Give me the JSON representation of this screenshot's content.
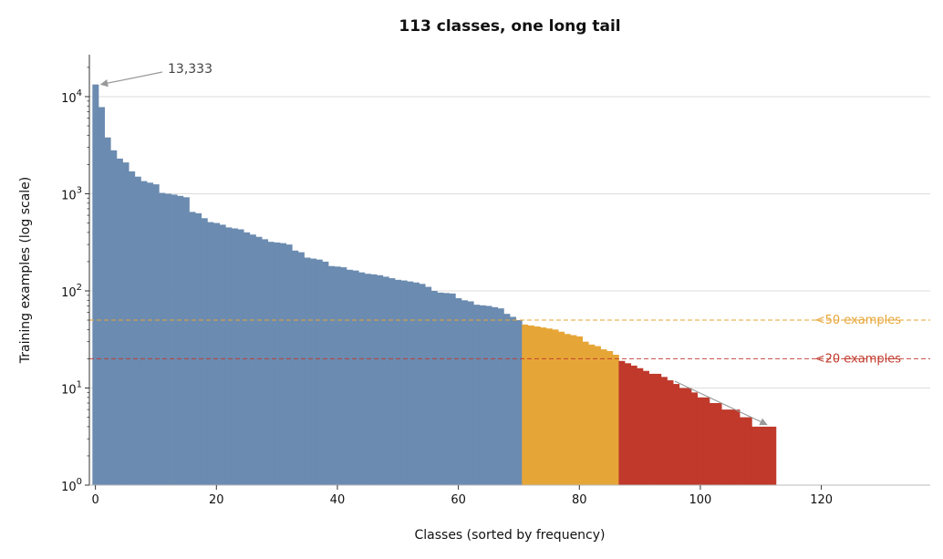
{
  "chart_data": {
    "type": "bar",
    "title": "113 classes, one long tail",
    "xlabel": "Classes (sorted by frequency)",
    "ylabel": "Training examples (log scale)",
    "yscale": "log",
    "xlim": [
      -1,
      138
    ],
    "ylim": [
      1,
      27000
    ],
    "grid": "horizontal at decades",
    "x_ticks": [
      0,
      20,
      40,
      60,
      80,
      100,
      120
    ],
    "x_tick_labels": [
      "0",
      "20",
      "40",
      "60",
      "80",
      "100",
      "120"
    ],
    "y_ticks": [
      1,
      10,
      100,
      1000,
      10000
    ],
    "y_tick_labels": [
      {
        "base": "10",
        "exp": "0"
      },
      {
        "base": "10",
        "exp": "1"
      },
      {
        "base": "10",
        "exp": "2"
      },
      {
        "base": "10",
        "exp": "3"
      },
      {
        "base": "10",
        "exp": "4"
      }
    ],
    "colors": {
      "common": "#6b8bb0",
      "under_50": "#e6a637",
      "under_20": "#c0392b"
    },
    "values": [
      13333,
      7800,
      3800,
      2800,
      2300,
      2100,
      1700,
      1500,
      1350,
      1300,
      1250,
      1020,
      1000,
      980,
      950,
      920,
      650,
      630,
      560,
      510,
      500,
      480,
      450,
      440,
      430,
      400,
      380,
      360,
      340,
      320,
      315,
      310,
      300,
      260,
      250,
      220,
      215,
      210,
      200,
      180,
      178,
      175,
      165,
      162,
      155,
      150,
      148,
      145,
      140,
      135,
      130,
      128,
      125,
      122,
      118,
      110,
      100,
      96,
      95,
      94,
      84,
      80,
      78,
      72,
      71,
      70,
      68,
      66,
      58,
      54,
      50,
      45,
      44,
      43,
      42,
      41,
      40,
      38,
      36,
      35,
      34,
      30,
      28,
      27,
      25,
      24,
      22,
      19,
      18,
      17,
      16,
      15,
      14,
      14,
      13,
      12,
      11,
      10,
      10,
      9,
      8,
      8,
      7,
      7,
      6,
      6,
      6,
      5,
      5,
      4,
      4,
      4,
      4
    ],
    "thresholds": [
      {
        "value": 50,
        "label": "<50 examples",
        "color": "#e6a637"
      },
      {
        "value": 20,
        "label": "<20 examples",
        "color": "#c0392b"
      }
    ],
    "annotations": [
      {
        "text": "13,333",
        "x": 0,
        "y": 13333
      }
    ]
  }
}
